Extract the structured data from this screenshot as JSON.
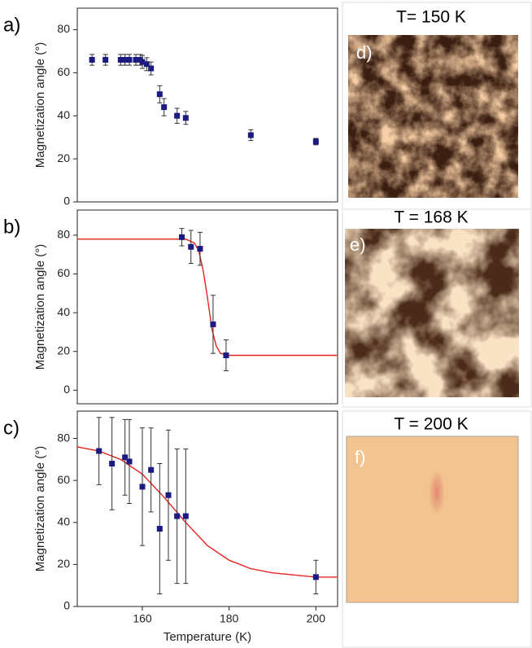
{
  "chart_data": [
    {
      "type": "scatter",
      "panel_label": "a)",
      "ylabel": "Magnetization angle (°)",
      "xlim": [
        145,
        205
      ],
      "ylim": [
        0,
        90
      ],
      "yticks": [
        0,
        20,
        40,
        60,
        80
      ],
      "series": [
        {
          "kind": "points",
          "color": "#1a1a80",
          "x": [
            148.4,
            151.5,
            155,
            156,
            157,
            158.5,
            159.5,
            160,
            161,
            162,
            164,
            165,
            168,
            170,
            185,
            200
          ],
          "values": [
            66,
            66,
            66,
            66,
            66,
            66,
            66,
            65,
            64,
            62,
            50,
            44,
            40,
            39,
            31,
            28
          ],
          "errors": [
            2.5,
            2.5,
            2.5,
            2.5,
            2.5,
            2.5,
            2.5,
            3,
            3,
            3,
            4,
            4,
            3.5,
            3,
            2.5,
            1.5
          ]
        }
      ]
    },
    {
      "type": "scatter",
      "panel_label": "b)",
      "ylabel": "Magnetization angle (°)",
      "xlim": [
        145,
        205
      ],
      "ylim": [
        -7,
        93
      ],
      "yticks": [
        0,
        20,
        40,
        60,
        80
      ],
      "series": [
        {
          "kind": "line",
          "color": "#e8231f",
          "x": [
            145,
            170,
            172,
            173,
            174,
            175,
            176,
            177,
            178,
            180,
            205
          ],
          "values": [
            78,
            78,
            76,
            72,
            62,
            48,
            32,
            23,
            19,
            18,
            18
          ]
        },
        {
          "kind": "points",
          "color": "#1a1a80",
          "x": [
            169.1,
            171.2,
            173.3,
            176.3,
            179.3
          ],
          "values": [
            79,
            74,
            73,
            34,
            18
          ],
          "errors": [
            4.5,
            8.5,
            8.5,
            15,
            8
          ]
        }
      ]
    },
    {
      "type": "scatter",
      "panel_label": "c)",
      "ylabel": "Magnetization angle (°)",
      "xlabel": "Temperature (K)",
      "xlim": [
        145,
        205
      ],
      "ylim": [
        0,
        93
      ],
      "yticks": [
        0,
        20,
        40,
        60,
        80
      ],
      "xticks": [
        160,
        180,
        200
      ],
      "series": [
        {
          "kind": "line",
          "color": "#e8231f",
          "x": [
            145,
            150,
            155,
            160,
            165,
            170,
            175,
            180,
            185,
            190,
            195,
            200,
            205
          ],
          "values": [
            76,
            74,
            70,
            63,
            52,
            40,
            29,
            22,
            18,
            16,
            15,
            14,
            14
          ]
        },
        {
          "kind": "points",
          "color": "#1a1a80",
          "x": [
            150,
            153,
            156,
            157,
            160,
            162,
            164,
            166,
            168,
            170,
            200
          ],
          "values": [
            74,
            68,
            71,
            69,
            57,
            65,
            37,
            53,
            43,
            43,
            14
          ],
          "errors": [
            16,
            22,
            18,
            20,
            28,
            20,
            31,
            31,
            32,
            32,
            8
          ]
        }
      ]
    }
  ],
  "images": [
    {
      "title": "T= 150 K",
      "label": "d)"
    },
    {
      "title": "T = 168 K",
      "label": "e)"
    },
    {
      "title": "T = 200 K",
      "label": "f)"
    }
  ]
}
